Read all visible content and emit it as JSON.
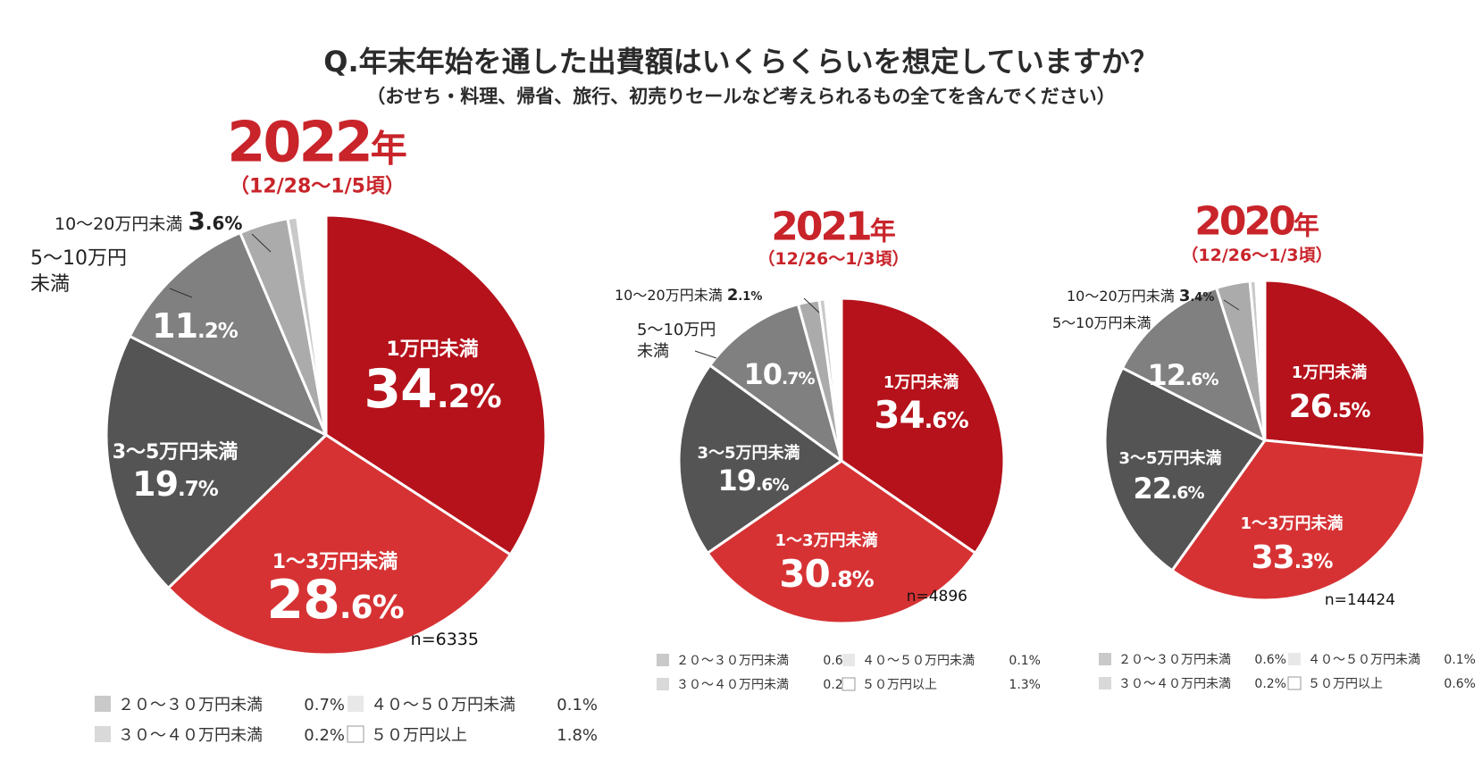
{
  "title": "Q.年末年始を通した出費額はいくらくらいを想定していますか？",
  "subtitle": "（おせち・料理、帰省、旅行、初売りセールなど考えられるもの全てを含んでください）",
  "colors": {
    "under1": "#b5121b",
    "1to3": "#d63234",
    "3to5": "#545454",
    "5to10": "#808080",
    "10to20": "#ababab",
    "20to30": "#c9c9c9",
    "30to40": "#d9d9d9",
    "40to50": "#e8e8e8",
    "50plus": "#ffffff",
    "accent": "#c8242a"
  },
  "chart_data": [
    {
      "type": "pie",
      "year": "2022",
      "year_suffix": "年",
      "period": "（12/28〜1/5頃）",
      "n": "n=6335",
      "slices": [
        {
          "label": "1万円未満",
          "value": 34.2,
          "value_text": "34.2%"
        },
        {
          "label": "1〜3万円未満",
          "value": 28.6,
          "value_text": "28.6%"
        },
        {
          "label": "3〜5万円未満",
          "value": 19.7,
          "value_text": "19.7%"
        },
        {
          "label": "5〜10万円未満",
          "label_lines": [
            "5〜10万円",
            "未満"
          ],
          "value": 11.2,
          "value_text": "11.2%"
        },
        {
          "label": "10〜20万円未満",
          "value": 3.6,
          "value_text": "3.6%"
        },
        {
          "label": "２０〜３０万円未満",
          "value": 0.7,
          "value_text": "0.7%"
        },
        {
          "label": "３０〜４０万円未満",
          "value": 0.2,
          "value_text": "0.2%"
        },
        {
          "label": "４０〜５０万円未満",
          "value": 0.1,
          "value_text": "0.1%"
        },
        {
          "label": "５０万円以上",
          "value": 1.8,
          "value_text": "1.8%"
        }
      ]
    },
    {
      "type": "pie",
      "year": "2021",
      "year_suffix": "年",
      "period": "（12/26〜1/3頃）",
      "n": "n=4896",
      "slices": [
        {
          "label": "1万円未満",
          "value": 34.6,
          "value_text": "34.6%"
        },
        {
          "label": "1〜3万円未満",
          "value": 30.8,
          "value_text": "30.8%"
        },
        {
          "label": "3〜5万円未満",
          "value": 19.6,
          "value_text": "19.6%"
        },
        {
          "label": "5〜10万円未満",
          "label_lines": [
            "5〜10万円",
            "未満"
          ],
          "value": 10.7,
          "value_text": "10.7%"
        },
        {
          "label": "10〜20万円未満",
          "value": 2.1,
          "value_text": "2.1%"
        },
        {
          "label": "２０〜３０万円未満",
          "value": 0.6,
          "value_text": "0.6%"
        },
        {
          "label": "３０〜４０万円未満",
          "value": 0.2,
          "value_text": "0.2%"
        },
        {
          "label": "４０〜５０万円未満",
          "value": 0.1,
          "value_text": "0.1%"
        },
        {
          "label": "５０万円以上",
          "value": 1.3,
          "value_text": "1.3%"
        }
      ]
    },
    {
      "type": "pie",
      "year": "2020",
      "year_suffix": "年",
      "period": "（12/26〜1/3頃）",
      "n": "n=14424",
      "slices": [
        {
          "label": "1万円未満",
          "value": 26.5,
          "value_text": "26.5%"
        },
        {
          "label": "1〜3万円未満",
          "value": 33.3,
          "value_text": "33.3%"
        },
        {
          "label": "3〜5万円未満",
          "value": 22.6,
          "value_text": "22.6%"
        },
        {
          "label": "5〜10万円未満",
          "value": 12.6,
          "value_text": "12.6%"
        },
        {
          "label": "10〜20万円未満",
          "value": 3.4,
          "value_text": "3.4%"
        },
        {
          "label": "２０〜３０万円未満",
          "value": 0.6,
          "value_text": "0.6%"
        },
        {
          "label": "３０〜４０万円未満",
          "value": 0.2,
          "value_text": "0.2%"
        },
        {
          "label": "４０〜５０万円未満",
          "value": 0.1,
          "value_text": "0.1%"
        },
        {
          "label": "５０万円以上",
          "value": 0.6,
          "value_text": "0.6%"
        }
      ]
    }
  ]
}
